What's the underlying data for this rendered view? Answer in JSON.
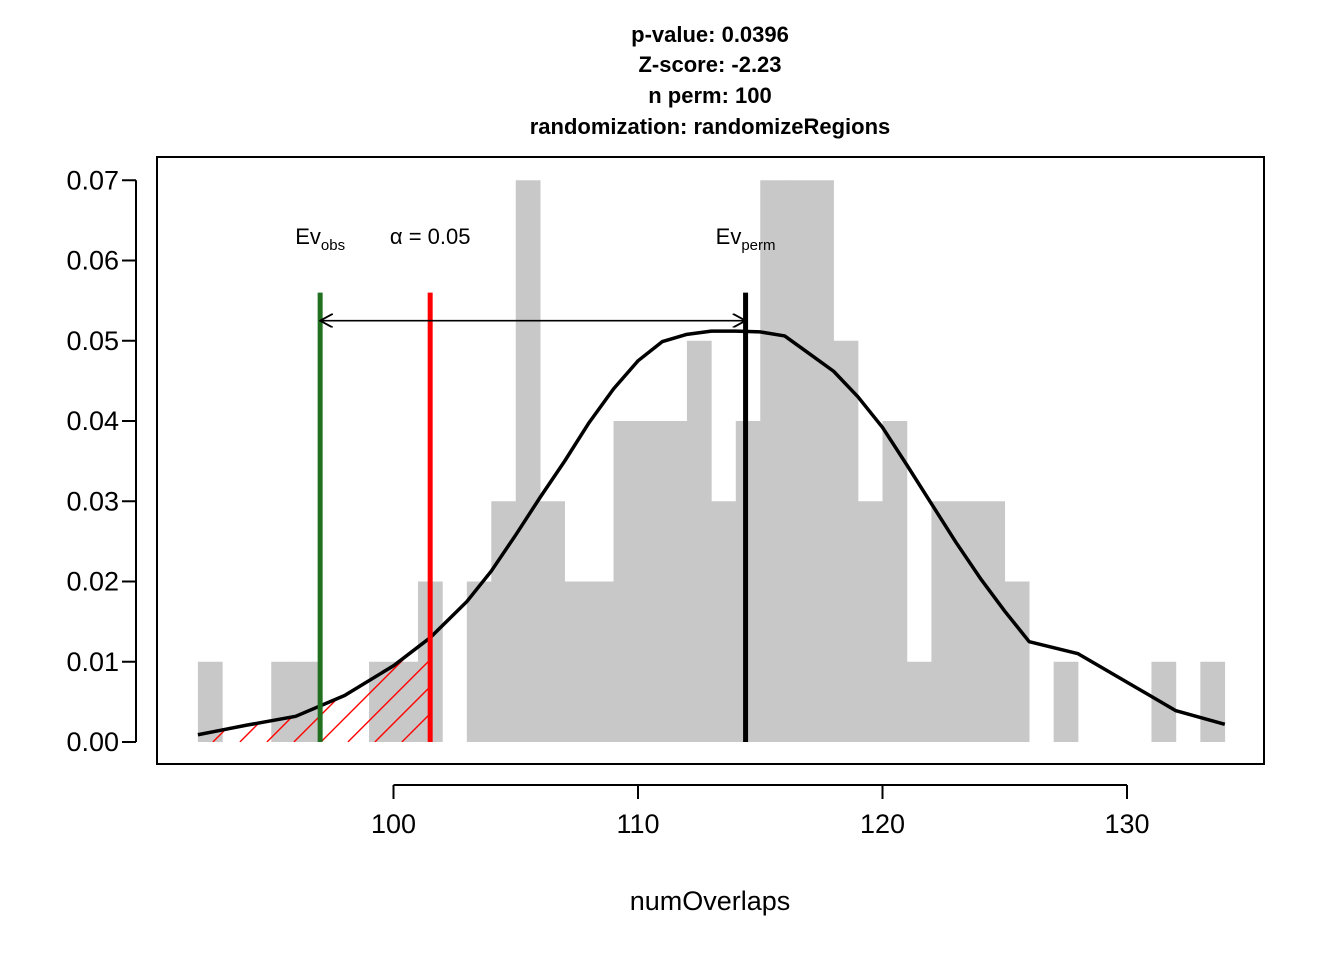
{
  "chart_data": {
    "type": "bar",
    "title_lines": [
      "p-value:  0.0396",
      "Z-score:  -2.23",
      "n perm:  100",
      "randomization:  randomizeRegions"
    ],
    "xlabel": "numOverlaps",
    "ylabel": "",
    "xlim": [
      92,
      134
    ],
    "ylim": [
      0,
      0.07
    ],
    "xticks": [
      100,
      110,
      120,
      130
    ],
    "yticks": [
      0.0,
      0.01,
      0.02,
      0.03,
      0.04,
      0.05,
      0.06,
      0.07
    ],
    "ytick_labels": [
      "0.00",
      "0.01",
      "0.02",
      "0.03",
      "0.04",
      "0.05",
      "0.06",
      "0.07"
    ],
    "histogram": {
      "bin_width": 1,
      "bins_start": [
        92,
        95,
        96,
        99,
        100,
        101,
        103,
        104,
        105,
        106,
        107,
        108,
        109,
        110,
        111,
        112,
        113,
        114,
        115,
        116,
        117,
        118,
        119,
        120,
        121,
        122,
        123,
        124,
        125,
        127,
        131,
        133
      ],
      "density": [
        0.01,
        0.01,
        0.01,
        0.01,
        0.01,
        0.02,
        0.02,
        0.03,
        0.07,
        0.03,
        0.02,
        0.02,
        0.04,
        0.04,
        0.04,
        0.05,
        0.03,
        0.04,
        0.07,
        0.07,
        0.07,
        0.05,
        0.03,
        0.04,
        0.01,
        0.03,
        0.03,
        0.03,
        0.02,
        0.01,
        0.01,
        0.01
      ],
      "color": "#c8c8c8"
    },
    "normal_curve": {
      "x": [
        92,
        93,
        94,
        96,
        98,
        100,
        101.5,
        102,
        103,
        104,
        105,
        106,
        107,
        108,
        109,
        110,
        111,
        112,
        113,
        114,
        115,
        116,
        117,
        118,
        119,
        120,
        121,
        122,
        123,
        124,
        125,
        126,
        128,
        132,
        134
      ],
      "y": [
        0.0009,
        0.0015,
        0.0021,
        0.0032,
        0.0058,
        0.0095,
        0.013,
        0.0145,
        0.0175,
        0.0213,
        0.0258,
        0.0305,
        0.035,
        0.0398,
        0.044,
        0.0475,
        0.0499,
        0.0508,
        0.0512,
        0.0512,
        0.0511,
        0.0506,
        0.0484,
        0.0462,
        0.043,
        0.0392,
        0.0345,
        0.0297,
        0.0249,
        0.0204,
        0.0163,
        0.0125,
        0.011,
        0.0039,
        0.0022
      ],
      "color": "#000000"
    },
    "ev_obs": {
      "label": "Ev",
      "sub": "obs",
      "x": 97,
      "color": "#207020"
    },
    "alpha": {
      "label": "α = 0.05",
      "x": 101.5,
      "color": "#ff0000"
    },
    "ev_perm": {
      "label": "Ev",
      "sub": "perm",
      "x": 114.4,
      "color": "#000000"
    },
    "vline_top": 0.056,
    "arrow_y": 0.0525,
    "hatch_color": "#ff0000",
    "grid": false,
    "legend": "none"
  }
}
